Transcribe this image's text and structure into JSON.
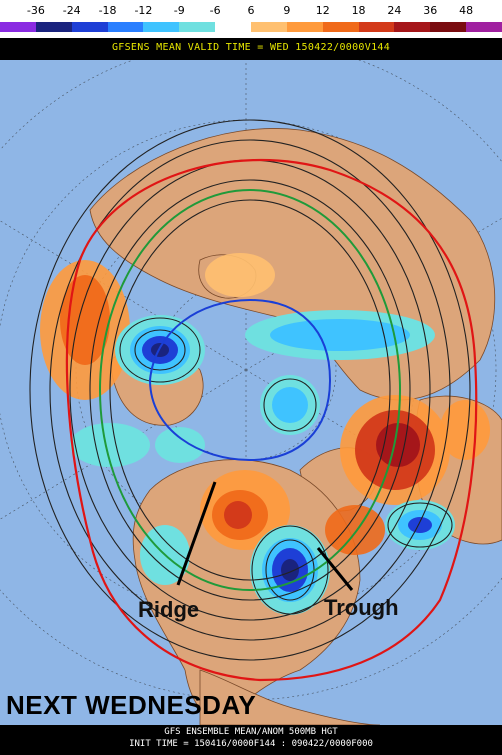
{
  "colorbar": {
    "ticks": [
      "-36",
      "-24",
      "-18",
      "-12",
      "-9",
      "-6",
      "6",
      "9",
      "12",
      "18",
      "24",
      "36",
      "48"
    ],
    "colors": [
      "#8a2be2",
      "#1a237e",
      "#1e3fd6",
      "#2a7fff",
      "#3fc3ff",
      "#6fe0e0",
      "#ffffff",
      "#ffc070",
      "#ff9a3c",
      "#f06a1a",
      "#d33a1a",
      "#a5161a",
      "#7a0c10",
      "#a020a0"
    ]
  },
  "header": {
    "title": "GFSENS MEAN VALID TIME = WED 150422/0000V144"
  },
  "annotations": {
    "ridge": "Ridge",
    "trough": "Trough"
  },
  "caption": "NEXT WEDNESDAY",
  "footer": {
    "line1": "GFS ENSEMBLE MEAN/ANOM 500MB HGT",
    "line2": "INIT TIME = 150416/0000F144 : 090422/0000F000"
  },
  "colors": {
    "ocean": "#8fb6e6",
    "land": "#dca57a",
    "border": "#7a4a2a",
    "contour": "#222222",
    "red_line": "#e01515",
    "blue_line": "#1a3fd6",
    "green_line": "#1f9a3a"
  }
}
